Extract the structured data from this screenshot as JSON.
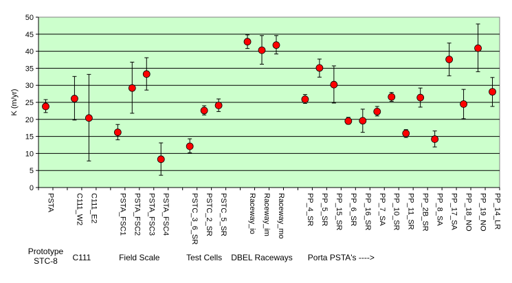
{
  "chart_data": {
    "type": "scatter",
    "ylabel": "K (m/yr)",
    "xlabel": "",
    "ylim": [
      0,
      50
    ],
    "yticks": [
      0,
      5,
      10,
      15,
      20,
      25,
      30,
      35,
      40,
      45,
      50
    ],
    "grid": true,
    "background_color": "#ccffcc",
    "marker_color": "#ff0000",
    "categories": [
      {
        "label": "PSTA",
        "slot": 0,
        "value": 23.8,
        "lo": 22.0,
        "hi": 25.8
      },
      {
        "label": "C111_W2",
        "slot": 2,
        "value": 26.1,
        "lo": 19.8,
        "hi": 32.6
      },
      {
        "label": "C111_E2",
        "slot": 3,
        "value": 20.4,
        "lo": 7.8,
        "hi": 33.2
      },
      {
        "label": "PSTA_FSC1",
        "slot": 5,
        "value": 16.2,
        "lo": 14.0,
        "hi": 18.5
      },
      {
        "label": "PSTA_FSC2",
        "slot": 6,
        "value": 29.2,
        "lo": 21.8,
        "hi": 36.8
      },
      {
        "label": "PSTA_FSC3",
        "slot": 7,
        "value": 33.3,
        "lo": 28.6,
        "hi": 38.1
      },
      {
        "label": "PSTA_FSC4",
        "slot": 8,
        "value": 8.3,
        "lo": 3.6,
        "hi": 13.1
      },
      {
        "label": "PSTC_3_6_SR",
        "slot": 10,
        "value": 12.1,
        "lo": 10.2,
        "hi": 14.3
      },
      {
        "label": "PSTC_2_SR",
        "slot": 11,
        "value": 22.6,
        "lo": 21.3,
        "hi": 24.0
      },
      {
        "label": "PSTC_5_SR",
        "slot": 12,
        "value": 24.1,
        "lo": 22.3,
        "hi": 26.0
      },
      {
        "label": "Raceway_io",
        "slot": 14,
        "value": 42.8,
        "lo": 40.8,
        "hi": 44.8
      },
      {
        "label": "Raceway_im",
        "slot": 15,
        "value": 40.3,
        "lo": 36.2,
        "hi": 44.6
      },
      {
        "label": "Raceway_mo",
        "slot": 16,
        "value": 41.8,
        "lo": 39.2,
        "hi": 44.6
      },
      {
        "label": "PP_4_SR",
        "slot": 18,
        "value": 25.9,
        "lo": 24.7,
        "hi": 27.3
      },
      {
        "label": "PP_5_SR",
        "slot": 19,
        "value": 35.1,
        "lo": 32.4,
        "hi": 37.7
      },
      {
        "label": "PP_15_SR",
        "slot": 20,
        "value": 30.2,
        "lo": 24.8,
        "hi": 35.7
      },
      {
        "label": "PP_6_SR",
        "slot": 21,
        "value": 19.5,
        "lo": 18.6,
        "hi": 20.6
      },
      {
        "label": "PP_16_SR",
        "slot": 22,
        "value": 19.6,
        "lo": 16.2,
        "hi": 23.0
      },
      {
        "label": "PP_7_SA",
        "slot": 23,
        "value": 22.3,
        "lo": 21.0,
        "hi": 23.8
      },
      {
        "label": "PP_10_SR",
        "slot": 24,
        "value": 26.6,
        "lo": 25.3,
        "hi": 27.9
      },
      {
        "label": "PP_11_SR",
        "slot": 25,
        "value": 15.9,
        "lo": 14.7,
        "hi": 17.0
      },
      {
        "label": "PP_2B_SR",
        "slot": 26,
        "value": 26.4,
        "lo": 23.6,
        "hi": 29.2
      },
      {
        "label": "PP_8_SA",
        "slot": 27,
        "value": 14.2,
        "lo": 11.9,
        "hi": 16.6
      },
      {
        "label": "PP_17_SA",
        "slot": 28,
        "value": 37.6,
        "lo": 32.8,
        "hi": 42.4
      },
      {
        "label": "PP_18_NO",
        "slot": 29,
        "value": 24.5,
        "lo": 20.2,
        "hi": 28.8
      },
      {
        "label": "PP_19_NO",
        "slot": 30,
        "value": 40.9,
        "lo": 34.0,
        "hi": 48.0
      },
      {
        "label": "PP_14_LR",
        "slot": 31,
        "value": 28.1,
        "lo": 23.8,
        "hi": 32.3
      }
    ],
    "slot_count": 32,
    "groups": [
      {
        "lines": [
          "Prototype",
          "STC-8"
        ],
        "center_slot": 0.0
      },
      {
        "lines": [
          "C111"
        ],
        "center_slot": 2.5
      },
      {
        "lines": [
          "Field Scale"
        ],
        "center_slot": 6.5
      },
      {
        "lines": [
          "Test Cells"
        ],
        "center_slot": 11.0
      },
      {
        "lines": [
          "DBEL Raceways"
        ],
        "center_slot": 15.0
      },
      {
        "lines": [
          "Porta PSTA's ---->"
        ],
        "center_slot": 20.5
      }
    ]
  }
}
